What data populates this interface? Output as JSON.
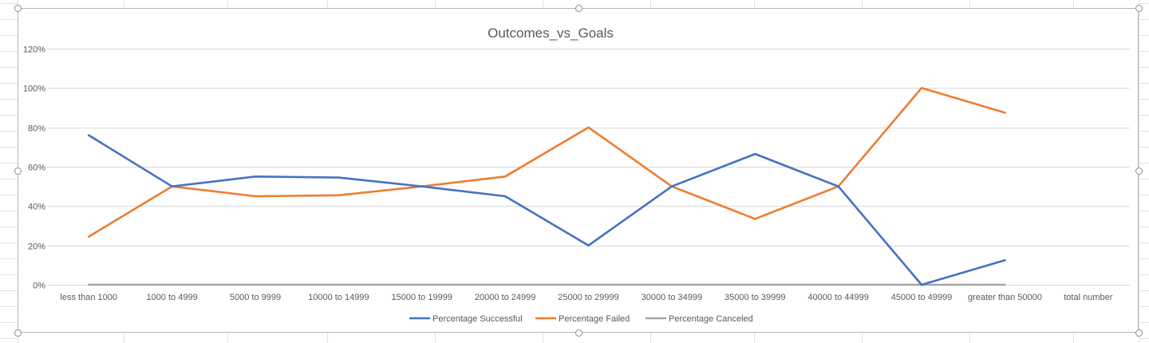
{
  "chart_data": {
    "type": "line",
    "title": "Outcomes_vs_Goals",
    "xlabel": "",
    "ylabel": "",
    "categories": [
      "less than 1000",
      "1000 to 4999",
      "5000 to 9999",
      "10000 to 14999",
      "15000 to 19999",
      "20000 to 24999",
      "25000 to 29999",
      "30000 to 34999",
      "35000 to 39999",
      "40000 to 44999",
      "45000 to 49999",
      "greater than 50000",
      "total number"
    ],
    "ylim": [
      0,
      1.2
    ],
    "yticks": [
      0,
      0.2,
      0.4,
      0.6,
      0.8,
      1.0,
      1.2
    ],
    "ytick_labels": [
      "0%",
      "20%",
      "40%",
      "60%",
      "80%",
      "100%",
      "120%"
    ],
    "grid": true,
    "legend_position": "bottom",
    "series": [
      {
        "name": "Percentage Successful",
        "color": "#4472c4",
        "values": [
          0.76,
          0.5,
          0.55,
          0.545,
          0.5,
          0.45,
          0.2,
          0.5,
          0.665,
          0.5,
          0.0,
          0.125,
          null
        ]
      },
      {
        "name": "Percentage Failed",
        "color": "#ed7d31",
        "values": [
          0.245,
          0.5,
          0.45,
          0.455,
          0.5,
          0.55,
          0.8,
          0.5,
          0.335,
          0.5,
          1.0,
          0.875,
          null
        ]
      },
      {
        "name": "Percentage Canceled",
        "color": "#a5a5a5",
        "values": [
          0,
          0,
          0,
          0,
          0,
          0,
          0,
          0,
          0,
          0,
          0,
          0,
          null
        ]
      }
    ]
  }
}
